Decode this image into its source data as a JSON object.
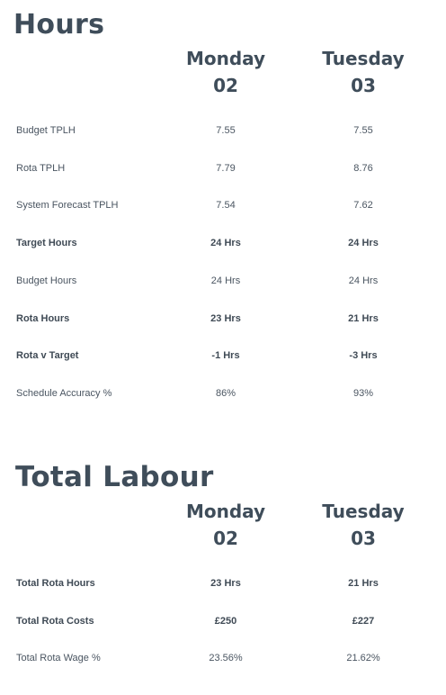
{
  "hours": {
    "title": "Hours",
    "days": [
      {
        "name": "Monday",
        "num": "02"
      },
      {
        "name": "Tuesday",
        "num": "03"
      }
    ],
    "rows": [
      {
        "label": "Budget TPLH",
        "monday": "7.55",
        "tuesday": "7.55",
        "bold": false
      },
      {
        "label": "Rota TPLH",
        "monday": "7.79",
        "tuesday": "8.76",
        "bold": false
      },
      {
        "label": "System Forecast TPLH",
        "monday": "7.54",
        "tuesday": "7.62",
        "bold": false
      },
      {
        "label": "Target Hours",
        "monday": "24 Hrs",
        "tuesday": "24 Hrs",
        "bold": true
      },
      {
        "label": "Budget Hours",
        "monday": "24 Hrs",
        "tuesday": "24 Hrs",
        "bold": false
      },
      {
        "label": "Rota Hours",
        "monday": "23 Hrs",
        "tuesday": "21 Hrs",
        "bold": true
      },
      {
        "label": "Rota v Target",
        "monday": "-1 Hrs",
        "tuesday": "-3 Hrs",
        "bold": true
      },
      {
        "label": "Schedule Accuracy %",
        "monday": "86%",
        "tuesday": "93%",
        "bold": false
      }
    ]
  },
  "total_labour": {
    "title": "Total Labour",
    "days": [
      {
        "name": "Monday",
        "num": "02"
      },
      {
        "name": "Tuesday",
        "num": "03"
      }
    ],
    "rows": [
      {
        "label": "Total Rota Hours",
        "monday": "23 Hrs",
        "tuesday": "21 Hrs",
        "bold": true
      },
      {
        "label": "Total Rota Costs",
        "monday": "£250",
        "tuesday": "£227",
        "bold": true
      },
      {
        "label": "Total Rota Wage %",
        "monday": "23.56%",
        "tuesday": "21.62%",
        "bold": false
      }
    ]
  },
  "colors": {
    "heading": "#3f4d5a",
    "text": "#4a5561",
    "background": "#ffffff"
  }
}
